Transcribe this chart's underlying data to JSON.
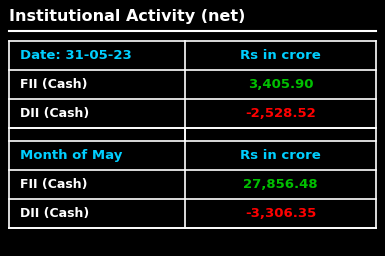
{
  "title": "Institutional Activity (net)",
  "bg_color": "#000000",
  "title_color": "#ffffff",
  "table_border_color": "#ffffff",
  "header_text_color": "#00cfff",
  "row_label_color": "#ffffff",
  "green_color": "#00c000",
  "red_color": "#ff0000",
  "section1_header": [
    "Date: 31-05-23",
    "Rs in crore"
  ],
  "section1_rows": [
    [
      "FII (Cash)",
      "3,405.90",
      "green"
    ],
    [
      "DII (Cash)",
      "-2,528.52",
      "red"
    ]
  ],
  "section2_header": [
    "Month of May",
    "Rs in crore"
  ],
  "section2_rows": [
    [
      "FII (Cash)",
      "27,856.48",
      "green"
    ],
    [
      "DII (Cash)",
      "-3,306.35",
      "red"
    ]
  ]
}
